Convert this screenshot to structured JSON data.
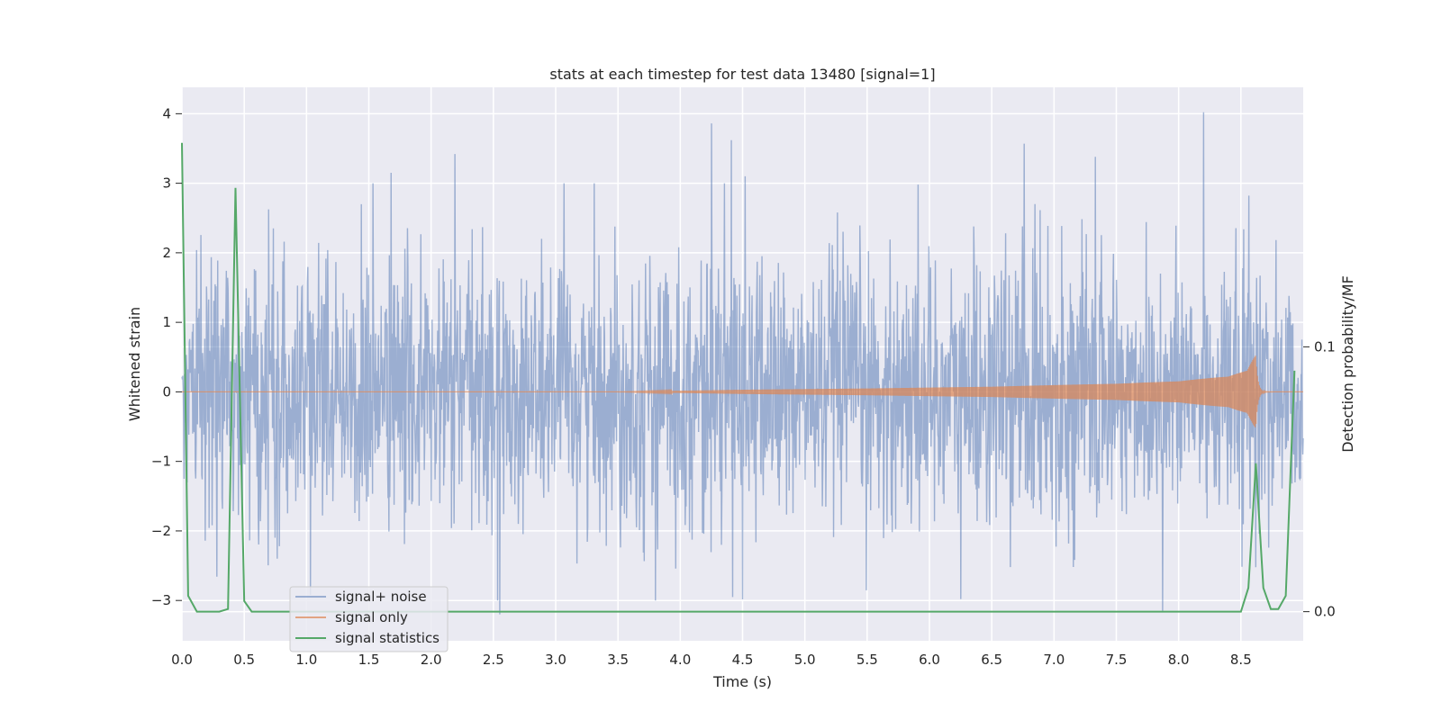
{
  "chart_data": {
    "type": "line",
    "title": "stats at each timestep for test data 13480 [signal=1]",
    "xlabel": "Time (s)",
    "ylabel": "Whitened strain",
    "y2label": "Detection probability/MF",
    "xlim": [
      0,
      9
    ],
    "ylim": [
      -3.58,
      4.38
    ],
    "y2lim": [
      -0.011,
      0.198
    ],
    "xticks": [
      "0.0",
      "0.5",
      "1.0",
      "1.5",
      "2.0",
      "2.5",
      "3.0",
      "3.5",
      "4.0",
      "4.5",
      "5.0",
      "5.5",
      "6.0",
      "6.5",
      "7.0",
      "7.5",
      "8.0",
      "8.5"
    ],
    "yticks": [
      "−3",
      "−2",
      "−1",
      "0",
      "1",
      "2",
      "3",
      "4"
    ],
    "y2ticks": [
      "0.0",
      "0.1"
    ],
    "grid": true,
    "legend_position": "lower-left",
    "series": [
      {
        "name": "signal+ noise",
        "color": "#4c72b0",
        "kind": "noise",
        "approx_std": 1.0,
        "peaks": [
          {
            "x": 4.25,
            "y": 3.86
          },
          {
            "x": 4.41,
            "y": 3.62
          },
          {
            "x": 8.2,
            "y": 4.02
          },
          {
            "x": 6.76,
            "y": 3.57
          },
          {
            "x": 7.33,
            "y": 3.38
          },
          {
            "x": 2.19,
            "y": 3.42
          },
          {
            "x": 1.68,
            "y": 3.15
          },
          {
            "x": 4.52,
            "y": 3.1
          },
          {
            "x": 2.55,
            "y": -3.2
          },
          {
            "x": 7.87,
            "y": -3.15
          },
          {
            "x": 3.8,
            "y": -3.0
          },
          {
            "x": 4.42,
            "y": -2.95
          },
          {
            "x": 6.25,
            "y": -2.98
          }
        ]
      },
      {
        "name": "signal only",
        "color": "#dd8452",
        "kind": "chirp",
        "merger_time": 8.62,
        "amplitudes": [
          {
            "x": 3.5,
            "y": 0.0
          },
          {
            "x": 4.5,
            "y": 0.03
          },
          {
            "x": 5.5,
            "y": 0.05
          },
          {
            "x": 6.5,
            "y": 0.08
          },
          {
            "x": 7.5,
            "y": 0.14
          },
          {
            "x": 8.0,
            "y": 0.2
          },
          {
            "x": 8.4,
            "y": 0.33
          },
          {
            "x": 8.55,
            "y": 0.5
          },
          {
            "x": 8.62,
            "y": 0.95
          }
        ]
      },
      {
        "name": "signal statistics",
        "color": "#55a868",
        "kind": "line",
        "axis": "right",
        "points": [
          {
            "x": 0.0,
            "y": 0.177
          },
          {
            "x": 0.05,
            "y": 0.006
          },
          {
            "x": 0.12,
            "y": 0.0
          },
          {
            "x": 0.3,
            "y": 0.0
          },
          {
            "x": 0.37,
            "y": 0.001
          },
          {
            "x": 0.43,
            "y": 0.16
          },
          {
            "x": 0.5,
            "y": 0.004
          },
          {
            "x": 0.56,
            "y": 0.0
          },
          {
            "x": 8.5,
            "y": 0.0
          },
          {
            "x": 8.56,
            "y": 0.009
          },
          {
            "x": 8.62,
            "y": 0.056
          },
          {
            "x": 8.68,
            "y": 0.009
          },
          {
            "x": 8.74,
            "y": 0.001
          },
          {
            "x": 8.8,
            "y": 0.001
          },
          {
            "x": 8.86,
            "y": 0.006
          },
          {
            "x": 8.93,
            "y": 0.091
          }
        ]
      }
    ]
  }
}
